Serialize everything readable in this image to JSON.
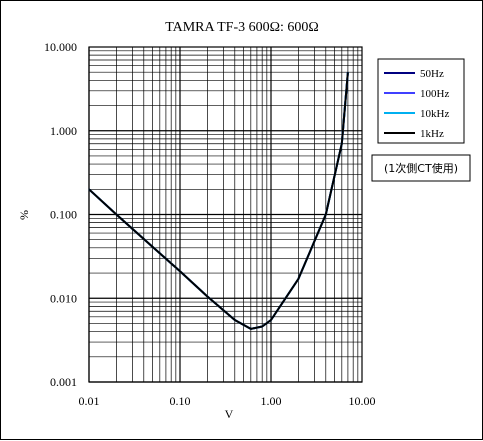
{
  "chart_data": {
    "type": "line",
    "title": "TAMRA TF-3 600Ω: 600Ω",
    "xlabel": "V",
    "ylabel": "%",
    "xscale": "log",
    "yscale": "log",
    "xlim": [
      0.01,
      10
    ],
    "ylim": [
      0.001,
      10
    ],
    "x_ticks": [
      "0.01",
      "0.10",
      "1.00",
      "10.00"
    ],
    "y_ticks": [
      "10.000",
      "1.000",
      "0.100",
      "0.010",
      "0.001"
    ],
    "grid": true,
    "legend_position": "right",
    "note": "(1次側CT使用)",
    "series": [
      {
        "name": "50Hz",
        "color": "#000080",
        "x": [
          0.01,
          0.02,
          0.05,
          0.1,
          0.2,
          0.4,
          0.6,
          0.8,
          1.0,
          2.0,
          4.0,
          6.0,
          7.0
        ],
        "y": [
          0.2,
          0.1,
          0.041,
          0.021,
          0.0105,
          0.0055,
          0.0043,
          0.0046,
          0.0055,
          0.017,
          0.1,
          0.7,
          5.0
        ]
      },
      {
        "name": "100Hz",
        "color": "#4040ff",
        "x": [
          0.01,
          0.02,
          0.05,
          0.1,
          0.2,
          0.4,
          0.6,
          0.8,
          1.0,
          2.0,
          4.0,
          6.0,
          7.0
        ],
        "y": [
          0.2,
          0.1,
          0.041,
          0.021,
          0.0105,
          0.0055,
          0.0043,
          0.0046,
          0.0055,
          0.017,
          0.1,
          0.7,
          5.0
        ]
      },
      {
        "name": "10kHz",
        "color": "#00b0f0",
        "x": [
          0.01,
          0.02,
          0.05,
          0.1,
          0.2,
          0.4,
          0.6,
          0.8,
          1.0,
          2.0,
          4.0,
          6.0,
          7.0
        ],
        "y": [
          0.2,
          0.1,
          0.041,
          0.021,
          0.0105,
          0.0055,
          0.0043,
          0.0046,
          0.0055,
          0.017,
          0.1,
          0.7,
          5.0
        ]
      },
      {
        "name": "1kHz",
        "color": "#000000",
        "x": [
          0.01,
          0.02,
          0.05,
          0.1,
          0.2,
          0.4,
          0.6,
          0.8,
          1.0,
          2.0,
          4.0,
          6.0,
          7.0
        ],
        "y": [
          0.2,
          0.1,
          0.041,
          0.021,
          0.0105,
          0.0055,
          0.0043,
          0.0046,
          0.0055,
          0.017,
          0.1,
          0.7,
          5.0
        ]
      }
    ]
  }
}
